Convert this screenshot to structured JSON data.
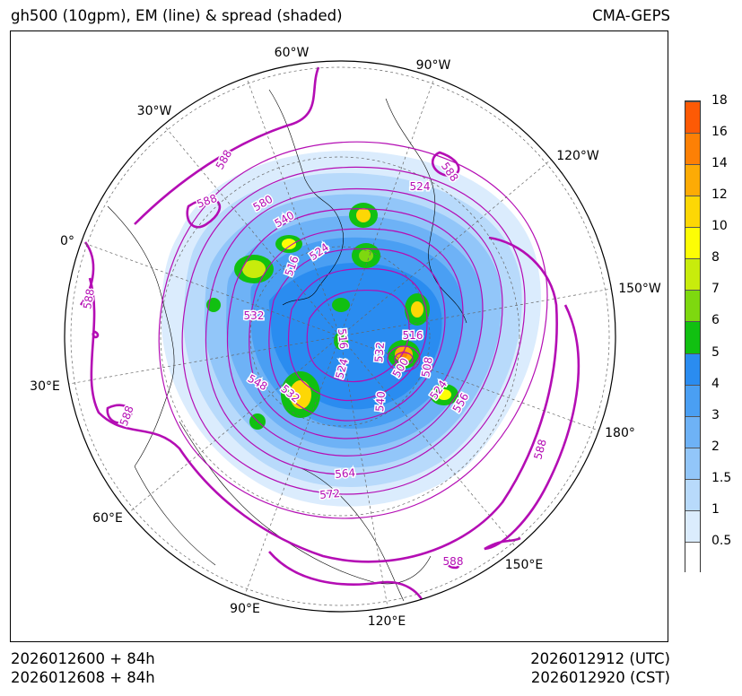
{
  "title": {
    "left": "gh500 (10gpm), EM (line) & spread (shaded)",
    "right": "CMA-GEPS"
  },
  "footer": {
    "init_utc": "2026012600 + 84h",
    "init_cst": "2026012608 + 84h",
    "valid_utc": "2026012912 (UTC)",
    "valid_cst": "2026012920 (CST)"
  },
  "map": {
    "projection": "north polar stereographic",
    "longitude_labels": [
      "60°W",
      "90°W",
      "30°W",
      "120°W",
      "0°",
      "150°W",
      "30°E",
      "180°",
      "60°E",
      "150°E",
      "90°E",
      "120°E"
    ],
    "contour_labels": [
      "588",
      "588",
      "588",
      "588",
      "588",
      "588",
      "588",
      "580",
      "572",
      "564",
      "556",
      "548",
      "540",
      "540",
      "532",
      "532",
      "532",
      "524",
      "524",
      "524",
      "524",
      "516",
      "516",
      "516",
      "508",
      "500"
    ],
    "line_color": "#b40db4",
    "coast_color": "#000000"
  },
  "colorbar": {
    "labels": [
      "0.5",
      "1",
      "1.5",
      "2",
      "3",
      "4",
      "5",
      "6",
      "7",
      "8",
      "10",
      "12",
      "14",
      "16",
      "18"
    ],
    "colors": [
      "#ffffff",
      "#dbecfd",
      "#b8dafb",
      "#92c6f9",
      "#6eb2f6",
      "#4a9ff3",
      "#2a8cf0",
      "#11c011",
      "#7ed80f",
      "#c8ec0c",
      "#fdfd05",
      "#fdd705",
      "#fdab05",
      "#fd8005",
      "#fd5a05"
    ]
  }
}
